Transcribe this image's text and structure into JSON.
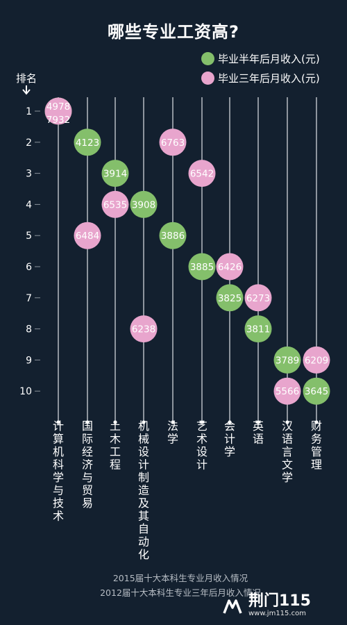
{
  "title": "哪些专业工资高?",
  "legend": [
    {
      "label": "毕业半年后月收入(元)",
      "color": "#84bf6b"
    },
    {
      "label": "毕业三年后月收入(元)",
      "color": "#e8a5cd"
    }
  ],
  "footer": {
    "line1": "2015届十大本科生专业月收入情况",
    "line2": "2012届十大本科生专业三年后月收入情况"
  },
  "brand": {
    "name": "荆门115",
    "url": "www.jm115.com"
  },
  "chart_data": {
    "type": "scatter",
    "title": "哪些专业工资高?",
    "ylabel": "排名",
    "y_ticks": [
      1,
      2,
      3,
      4,
      5,
      6,
      7,
      8,
      9,
      10
    ],
    "y_direction": "top-to-bottom",
    "categories": [
      "计算机科学与技术",
      "国际经济与贸易",
      "土木工程",
      "机械设计制造及其自动化",
      "法学",
      "艺术设计",
      "会计学",
      "英语",
      "汉语言文学",
      "财务管理"
    ],
    "series": [
      {
        "name": "毕业半年后月收入(元)",
        "color": "#84bf6b",
        "points": [
          {
            "category": "计算机科学与技术",
            "rank": 1,
            "value": 4978
          },
          {
            "category": "国际经济与贸易",
            "rank": 2,
            "value": 4123
          },
          {
            "category": "土木工程",
            "rank": 3,
            "value": 3914
          },
          {
            "category": "机械设计制造及其自动化",
            "rank": 4,
            "value": 3908
          },
          {
            "category": "法学",
            "rank": 5,
            "value": 3886
          },
          {
            "category": "艺术设计",
            "rank": 6,
            "value": 3885
          },
          {
            "category": "会计学",
            "rank": 7,
            "value": 3825
          },
          {
            "category": "英语",
            "rank": 8,
            "value": 3811
          },
          {
            "category": "汉语言文学",
            "rank": 9,
            "value": 3789
          },
          {
            "category": "财务管理",
            "rank": 10,
            "value": 3645
          }
        ]
      },
      {
        "name": "毕业三年后月收入(元)",
        "color": "#e8a5cd",
        "points": [
          {
            "category": "计算机科学与技术",
            "rank": 1,
            "value": 7932
          },
          {
            "category": "法学",
            "rank": 2,
            "value": 6763
          },
          {
            "category": "艺术设计",
            "rank": 3,
            "value": 6542
          },
          {
            "category": "土木工程",
            "rank": 4,
            "value": 6535
          },
          {
            "category": "国际经济与贸易",
            "rank": 5,
            "value": 6484
          },
          {
            "category": "会计学",
            "rank": 6,
            "value": 6426
          },
          {
            "category": "英语",
            "rank": 7,
            "value": 6273
          },
          {
            "category": "机械设计制造及其自动化",
            "rank": 8,
            "value": 6238
          },
          {
            "category": "财务管理",
            "rank": 9,
            "value": 6209
          },
          {
            "category": "汉语言文学",
            "rank": 10,
            "value": 5566
          }
        ]
      }
    ]
  }
}
